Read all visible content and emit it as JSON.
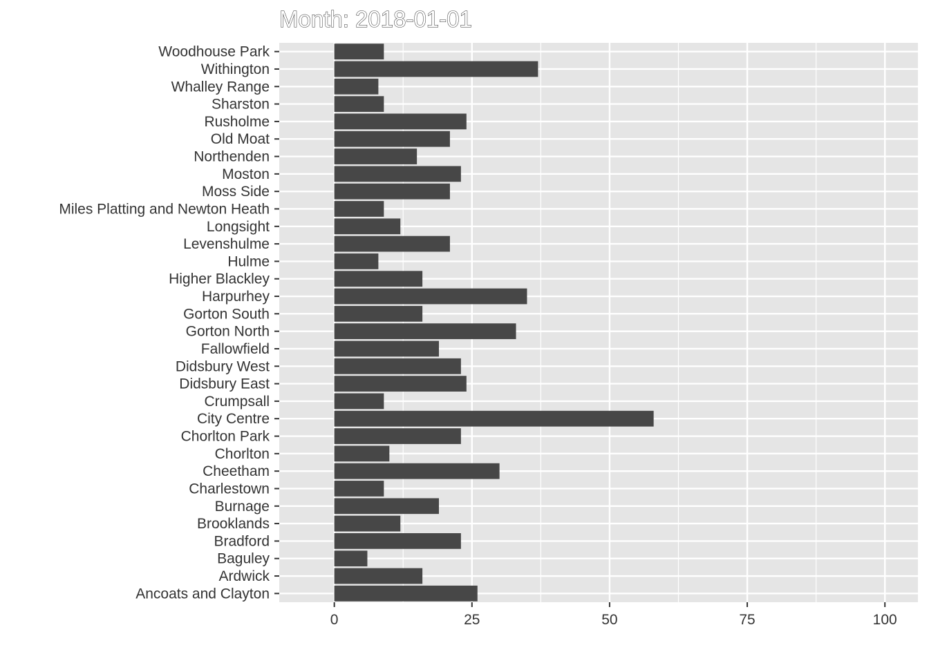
{
  "chart_data": {
    "type": "bar",
    "orientation": "horizontal",
    "title": "Month: 2018-01-01",
    "xlabel": "",
    "ylabel": "",
    "xlim": [
      -10,
      106
    ],
    "x_ticks": [
      0,
      25,
      50,
      75,
      100
    ],
    "x_tick_labels": [
      "0",
      "25",
      "50",
      "75",
      "100"
    ],
    "grid": true,
    "legend": "none",
    "colors": {
      "bar": "#474747",
      "panel": "#e5e5e5",
      "grid": "#ffffff"
    },
    "categories": [
      "Woodhouse Park",
      "Withington",
      "Whalley Range",
      "Sharston",
      "Rusholme",
      "Old Moat",
      "Northenden",
      "Moston",
      "Moss Side",
      "Miles Platting and Newton Heath",
      "Longsight",
      "Levenshulme",
      "Hulme",
      "Higher Blackley",
      "Harpurhey",
      "Gorton South",
      "Gorton North",
      "Fallowfield",
      "Didsbury West",
      "Didsbury East",
      "Crumpsall",
      "City Centre",
      "Chorlton Park",
      "Chorlton",
      "Cheetham",
      "Charlestown",
      "Burnage",
      "Brooklands",
      "Bradford",
      "Baguley",
      "Ardwick",
      "Ancoats and Clayton"
    ],
    "values": [
      9,
      37,
      8,
      9,
      24,
      21,
      15,
      23,
      21,
      9,
      12,
      21,
      8,
      16,
      35,
      16,
      33,
      19,
      23,
      24,
      9,
      58,
      23,
      10,
      30,
      9,
      19,
      12,
      23,
      6,
      16,
      26
    ]
  }
}
